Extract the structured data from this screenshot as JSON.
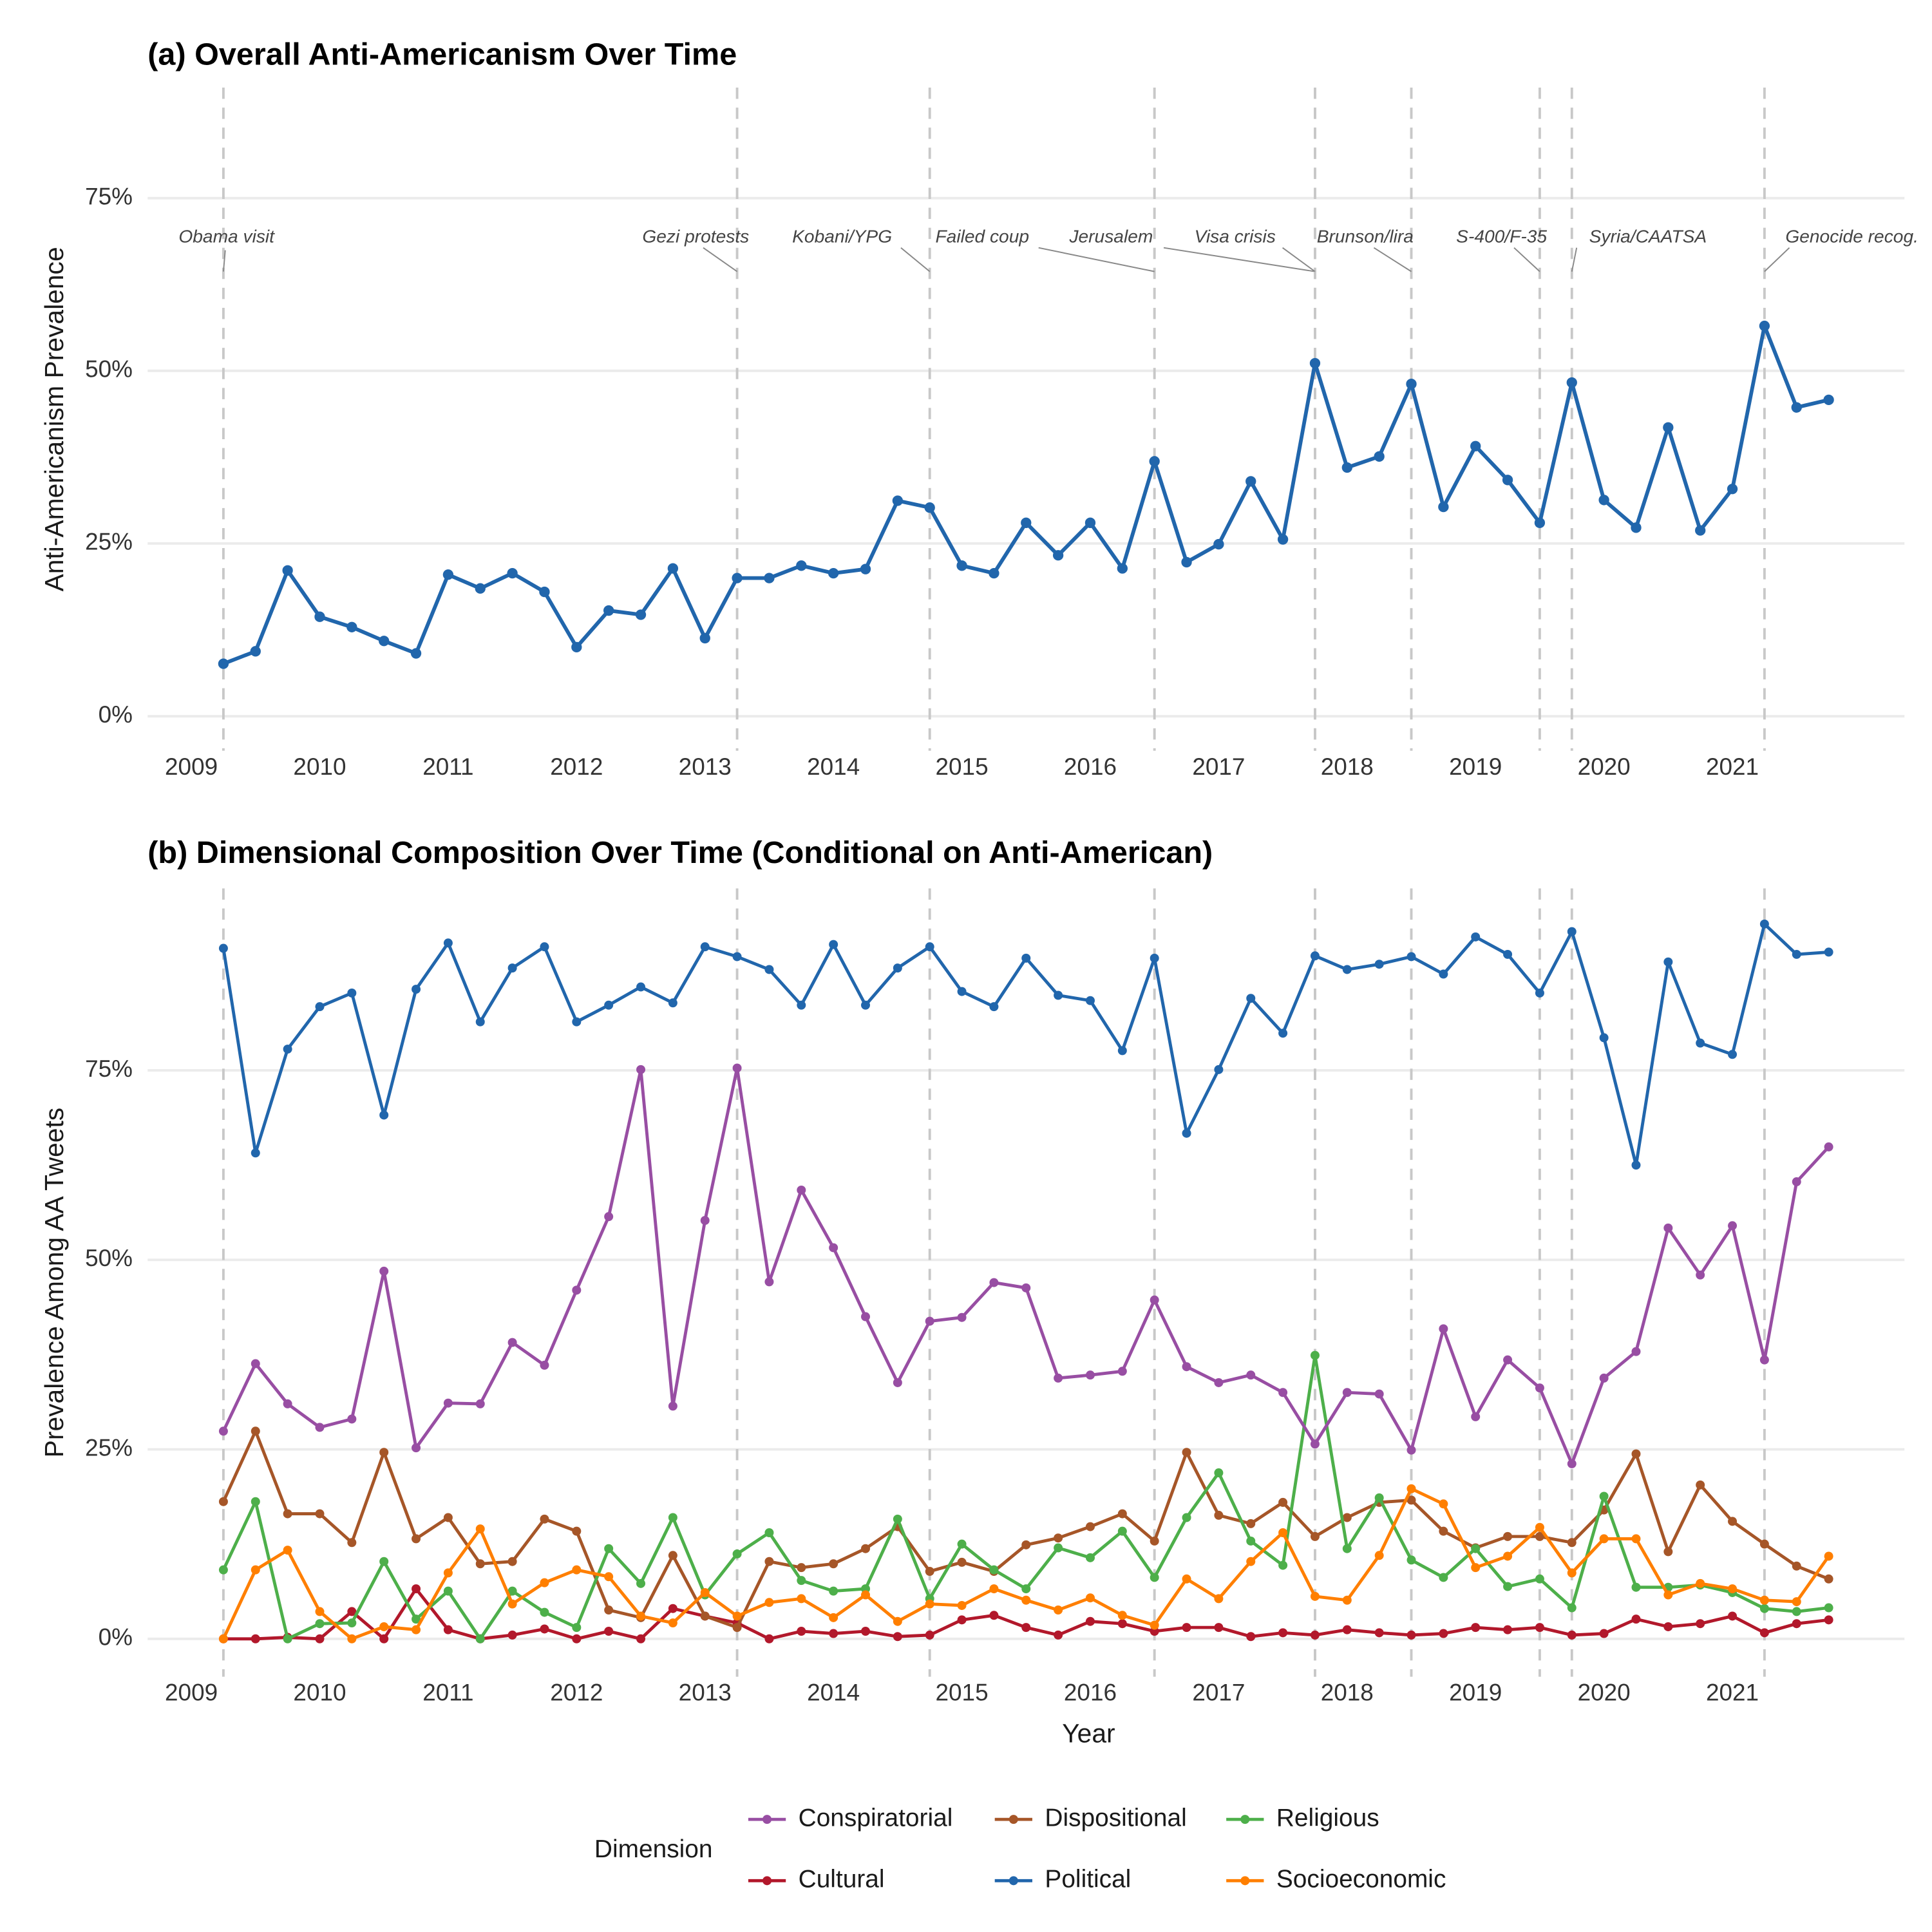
{
  "chart_data": [
    {
      "type": "line",
      "title": "(a) Overall Anti-Americanism Over Time",
      "ylabel": "Anti-Americanism Prevalence",
      "x": [
        2009.25,
        2009.5,
        2009.75,
        2010,
        2010.25,
        2010.5,
        2010.75,
        2011,
        2011.25,
        2011.5,
        2011.75,
        2012,
        2012.25,
        2012.5,
        2012.75,
        2013,
        2013.25,
        2013.5,
        2013.75,
        2014,
        2014.25,
        2014.5,
        2014.75,
        2015,
        2015.25,
        2015.5,
        2015.75,
        2016,
        2016.25,
        2016.5,
        2016.75,
        2017,
        2017.25,
        2017.5,
        2017.75,
        2018,
        2018.25,
        2018.5,
        2018.75,
        2019,
        2019.25,
        2019.5,
        2019.75,
        2020,
        2020.25,
        2020.5,
        2020.75,
        2021,
        2021.25,
        2021.5,
        2021.75
      ],
      "values": [
        7.6,
        9.4,
        21.1,
        14.4,
        12.9,
        10.9,
        9.1,
        20.5,
        18.5,
        20.7,
        18.0,
        10.0,
        15.3,
        14.7,
        21.4,
        11.3,
        20.0,
        20.0,
        21.8,
        20.7,
        21.3,
        31.2,
        30.2,
        21.8,
        20.7,
        28.0,
        23.3,
        28.0,
        21.4,
        36.9,
        22.3,
        24.9,
        34.0,
        25.6,
        51.1,
        36.0,
        37.6,
        48.1,
        30.3,
        39.1,
        34.2,
        28.0,
        48.3,
        31.3,
        27.3,
        41.8,
        26.9,
        32.9,
        56.5,
        44.7,
        45.8
      ],
      "color": "#2166ac",
      "xlim": [
        2008.66,
        2022.34
      ],
      "xticks": [
        2009,
        2010,
        2011,
        2012,
        2013,
        2014,
        2015,
        2016,
        2017,
        2018,
        2019,
        2020,
        2021
      ],
      "ylim": [
        -5,
        91
      ],
      "yticks": [
        {
          "value": 0,
          "label": "0%"
        },
        {
          "value": 25,
          "label": "25%"
        },
        {
          "value": 50,
          "label": "50%"
        },
        {
          "value": 75,
          "label": "75%"
        }
      ],
      "grid": true,
      "events": [
        {
          "x": 2009.25,
          "label": "Obama visit"
        },
        {
          "x": 2013.25,
          "label": "Gezi protests"
        },
        {
          "x": 2014.75,
          "label": "Kobani/YPG"
        },
        {
          "x": 2016.5,
          "label": "Failed coup"
        },
        {
          "x": 2017.75,
          "label": "Jerusalem"
        },
        {
          "x": 2017.75,
          "label": "Visa crisis"
        },
        {
          "x": 2018.5,
          "label": "Brunson/lira"
        },
        {
          "x": 2019.5,
          "label": "S-400/F-35"
        },
        {
          "x": 2019.75,
          "label": "Syria/CAATSA"
        },
        {
          "x": 2021.25,
          "label": "Genocide recog."
        }
      ]
    },
    {
      "type": "line",
      "title": "(b) Dimensional Composition Over Time (Conditional on Anti-American)",
      "xlabel": "Year",
      "ylabel": "Prevalence Among AA Tweets",
      "legend_title": "Dimension",
      "x": [
        2009.25,
        2009.5,
        2009.75,
        2010,
        2010.25,
        2010.5,
        2010.75,
        2011,
        2011.25,
        2011.5,
        2011.75,
        2012,
        2012.25,
        2012.5,
        2012.75,
        2013,
        2013.25,
        2013.5,
        2013.75,
        2014,
        2014.25,
        2014.5,
        2014.75,
        2015,
        2015.25,
        2015.5,
        2015.75,
        2016,
        2016.25,
        2016.5,
        2016.75,
        2017,
        2017.25,
        2017.5,
        2017.75,
        2018,
        2018.25,
        2018.5,
        2018.75,
        2019,
        2019.25,
        2019.5,
        2019.75,
        2020,
        2020.25,
        2020.5,
        2020.75,
        2021,
        2021.25,
        2021.5,
        2021.75
      ],
      "series": [
        {
          "name": "Conspiratorial",
          "color": "#984ea3",
          "values": [
            27.4,
            36.3,
            31.0,
            27.9,
            29.0,
            48.5,
            25.2,
            31.1,
            31.0,
            39.1,
            36.1,
            46.0,
            55.7,
            75.1,
            30.7,
            55.2,
            75.3,
            47.1,
            59.2,
            51.6,
            42.5,
            33.8,
            41.9,
            42.4,
            47.0,
            46.3,
            34.4,
            34.8,
            35.3,
            44.7,
            35.9,
            33.8,
            34.8,
            32.5,
            25.7,
            32.5,
            32.3,
            24.9,
            40.9,
            29.3,
            36.8,
            33.1,
            23.1,
            34.4,
            37.9,
            54.2,
            48.0,
            54.5,
            36.8,
            60.3,
            64.9
          ]
        },
        {
          "name": "Cultural",
          "color": "#b2182b",
          "values": [
            0,
            0,
            0.2,
            0,
            3.6,
            0,
            6.6,
            1.2,
            0,
            0.5,
            1.3,
            0,
            1.0,
            0,
            4.0,
            3.0,
            2.1,
            0,
            1.0,
            0.7,
            1.0,
            0.3,
            0.5,
            2.5,
            3.1,
            1.5,
            0.5,
            2.3,
            2.0,
            1.0,
            1.5,
            1.5,
            0.3,
            0.8,
            0.5,
            1.2,
            0.8,
            0.5,
            0.7,
            1.5,
            1.2,
            1.5,
            0.5,
            0.7,
            2.6,
            1.6,
            2.0,
            3.0,
            0.8,
            2.0,
            2.5
          ]
        },
        {
          "name": "Dispositional",
          "color": "#a65628",
          "values": [
            18.1,
            27.4,
            16.5,
            16.5,
            12.7,
            24.6,
            13.2,
            16.0,
            9.9,
            10.2,
            15.8,
            14.2,
            3.8,
            2.8,
            11.0,
            3.0,
            1.5,
            10.2,
            9.4,
            9.9,
            11.9,
            14.8,
            8.9,
            10.1,
            8.9,
            12.4,
            13.3,
            14.8,
            16.5,
            12.9,
            24.6,
            16.3,
            15.2,
            18.0,
            13.5,
            16.0,
            18.0,
            18.3,
            14.2,
            12.0,
            13.5,
            13.5,
            12.7,
            17.0,
            24.4,
            11.5,
            20.3,
            15.5,
            12.5,
            9.6,
            7.9
          ]
        },
        {
          "name": "Political",
          "color": "#2166ac",
          "values": [
            91.1,
            64.1,
            77.8,
            83.4,
            85.2,
            69.1,
            85.7,
            91.8,
            81.4,
            88.5,
            91.3,
            81.4,
            83.6,
            86.0,
            83.9,
            91.3,
            90.0,
            88.3,
            83.6,
            91.6,
            83.6,
            88.5,
            91.3,
            85.4,
            83.4,
            89.8,
            84.9,
            84.2,
            77.6,
            89.8,
            66.7,
            75.1,
            84.5,
            79.9,
            90.1,
            88.3,
            89.0,
            90.0,
            87.7,
            92.6,
            90.3,
            85.2,
            93.3,
            79.3,
            62.5,
            89.3,
            78.6,
            77.1,
            94.3,
            90.3,
            90.6
          ]
        },
        {
          "name": "Religious",
          "color": "#4daf4a",
          "values": [
            9.1,
            18.1,
            0,
            2.0,
            2.1,
            10.2,
            2.6,
            6.3,
            0,
            6.3,
            3.5,
            1.5,
            11.9,
            7.3,
            16.0,
            5.8,
            11.2,
            14.0,
            7.7,
            6.3,
            6.6,
            15.8,
            5.3,
            12.5,
            9.1,
            6.6,
            12.0,
            10.7,
            14.2,
            8.1,
            16.0,
            21.9,
            12.9,
            9.7,
            37.4,
            11.9,
            18.6,
            10.4,
            8.1,
            11.9,
            6.9,
            7.9,
            4.1,
            18.8,
            6.8,
            6.8,
            7.1,
            6.1,
            4.0,
            3.6,
            4.1
          ]
        },
        {
          "name": "Socioeconomic",
          "color": "#ff7f00",
          "values": [
            0,
            9.1,
            11.7,
            3.6,
            0,
            1.6,
            1.2,
            8.7,
            14.5,
            4.6,
            7.4,
            9.1,
            8.2,
            3.0,
            2.1,
            6.1,
            3.0,
            4.8,
            5.3,
            2.8,
            5.8,
            2.3,
            4.6,
            4.4,
            6.6,
            5.1,
            3.8,
            5.4,
            3.1,
            1.8,
            7.9,
            5.3,
            10.2,
            14.0,
            5.6,
            5.1,
            11.0,
            19.8,
            17.8,
            9.4,
            10.9,
            14.7,
            8.7,
            13.2,
            13.2,
            5.8,
            7.3,
            6.6,
            5.1,
            4.9,
            10.9
          ]
        }
      ],
      "xlim": [
        2008.66,
        2022.34
      ],
      "xticks": [
        2009,
        2010,
        2011,
        2012,
        2013,
        2014,
        2015,
        2016,
        2017,
        2018,
        2019,
        2020,
        2021
      ],
      "ylim": [
        -5,
        99
      ],
      "yticks": [
        {
          "value": 0,
          "label": "0%"
        },
        {
          "value": 25,
          "label": "25%"
        },
        {
          "value": 50,
          "label": "50%"
        },
        {
          "value": 75,
          "label": "75%"
        }
      ],
      "grid": true
    }
  ]
}
